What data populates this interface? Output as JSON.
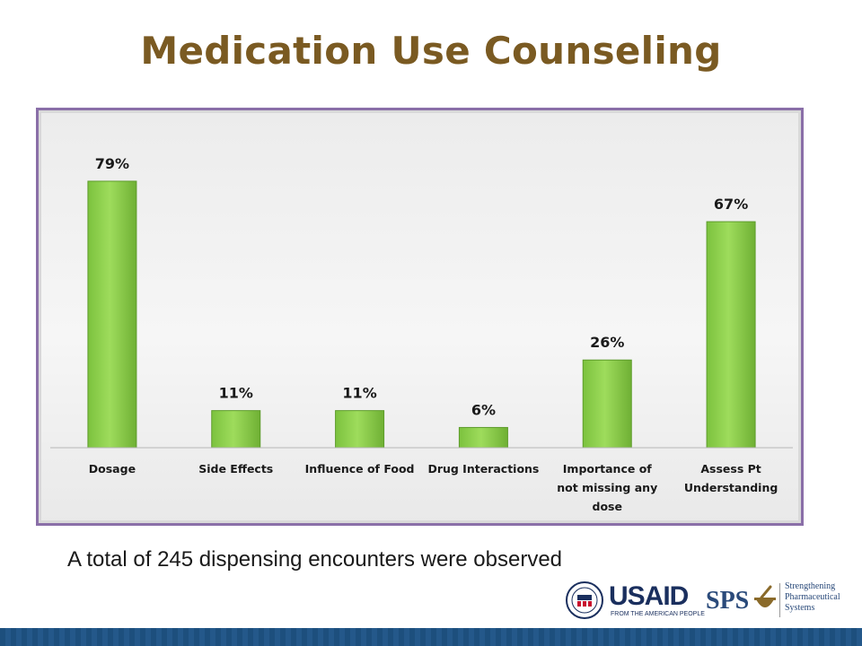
{
  "slide": {
    "title": "Medication Use Counseling",
    "caption": "A total of 245 dispensing encounters were observed"
  },
  "logos": {
    "usaid": {
      "name": "USAID",
      "tagline": "FROM THE AMERICAN PEOPLE"
    },
    "sps": {
      "abbr": "SPS",
      "name_lines": [
        "Strengthening",
        "Pharmaceutical",
        "Systems"
      ]
    }
  },
  "colors": {
    "title": "#7a5a22",
    "bar": "#8fd14f",
    "bar_edge": "#5e9c2c",
    "frame": "#8a6fa8"
  },
  "chart_data": {
    "type": "bar",
    "title": "",
    "xlabel": "",
    "ylabel": "",
    "ylim": [
      0,
      100
    ],
    "grid": false,
    "categories": [
      [
        "Dosage"
      ],
      [
        "Side Effects"
      ],
      [
        "Influence of Food"
      ],
      [
        "Drug Interactions"
      ],
      [
        "Importance of",
        "not missing any",
        "dose"
      ],
      [
        "Assess Pt",
        "Understanding"
      ]
    ],
    "values": [
      79,
      11,
      11,
      6,
      26,
      67
    ],
    "value_labels": [
      "79%",
      "11%",
      "11%",
      "6%",
      "26%",
      "67%"
    ]
  }
}
